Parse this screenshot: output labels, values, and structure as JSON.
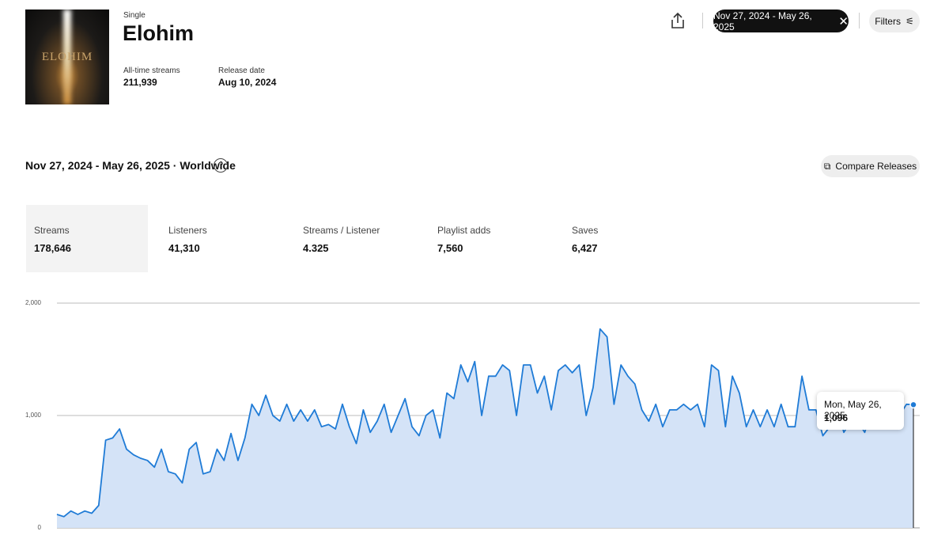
{
  "header": {
    "kind": "Single",
    "title": "Elohim",
    "cover_text": "ELOHIM",
    "stats": [
      {
        "label": "All-time streams",
        "value": "211,939"
      },
      {
        "label": "Release date",
        "value": "Aug 10, 2024"
      }
    ]
  },
  "toolbar": {
    "date_range": "Nov 27, 2024 - May 26, 2025",
    "filters": "Filters"
  },
  "section": {
    "subtitle": "Nov 27, 2024 - May 26, 2025 · Worldwide",
    "help": "?",
    "compare": "Compare Releases"
  },
  "metrics": [
    {
      "label": "Streams",
      "value": "178,646"
    },
    {
      "label": "Listeners",
      "value": "41,310"
    },
    {
      "label": "Streams / Listener",
      "value": "4.325"
    },
    {
      "label": "Playlist adds",
      "value": "7,560"
    },
    {
      "label": "Saves",
      "value": "6,427"
    }
  ],
  "chart_data": {
    "type": "area",
    "color": "#1f7bd6",
    "fill": "#d4e3f7",
    "values": [
      120,
      100,
      150,
      120,
      150,
      130,
      200,
      780,
      800,
      880,
      700,
      650,
      620,
      600,
      540,
      700,
      500,
      480,
      400,
      700,
      760,
      480,
      500,
      700,
      600,
      840,
      600,
      800,
      1100,
      1000,
      1180,
      1000,
      950,
      1100,
      950,
      1050,
      950,
      1050,
      900,
      920,
      880,
      1100,
      900,
      750,
      1050,
      850,
      950,
      1100,
      850,
      1000,
      1150,
      900,
      820,
      1000,
      1050,
      800,
      1200,
      1150,
      1450,
      1300,
      1480,
      1000,
      1350,
      1350,
      1450,
      1400,
      1000,
      1450,
      1450,
      1200,
      1350,
      1050,
      1400,
      1450,
      1380,
      1450,
      1000,
      1250,
      1770,
      1700,
      1100,
      1450,
      1350,
      1280,
      1050,
      950,
      1100,
      900,
      1050,
      1050,
      1100,
      1050,
      1100,
      900,
      1450,
      1400,
      900,
      1350,
      1200,
      900,
      1050,
      900,
      1050,
      900,
      1100,
      900,
      900,
      1350,
      1050,
      1050,
      820,
      900,
      1100,
      850,
      950,
      950,
      850,
      1050,
      900,
      1000,
      1050,
      1000,
      1100,
      1096
    ],
    "ylim": [
      0,
      2000
    ],
    "yticks": [
      0,
      {
        "value": 1000,
        "label": "1,000"
      },
      {
        "value": 2000,
        "label": "2,000"
      }
    ],
    "grid": true,
    "tooltip": {
      "date": "Mon, May 26, 2025",
      "value_label": "1,096"
    }
  }
}
